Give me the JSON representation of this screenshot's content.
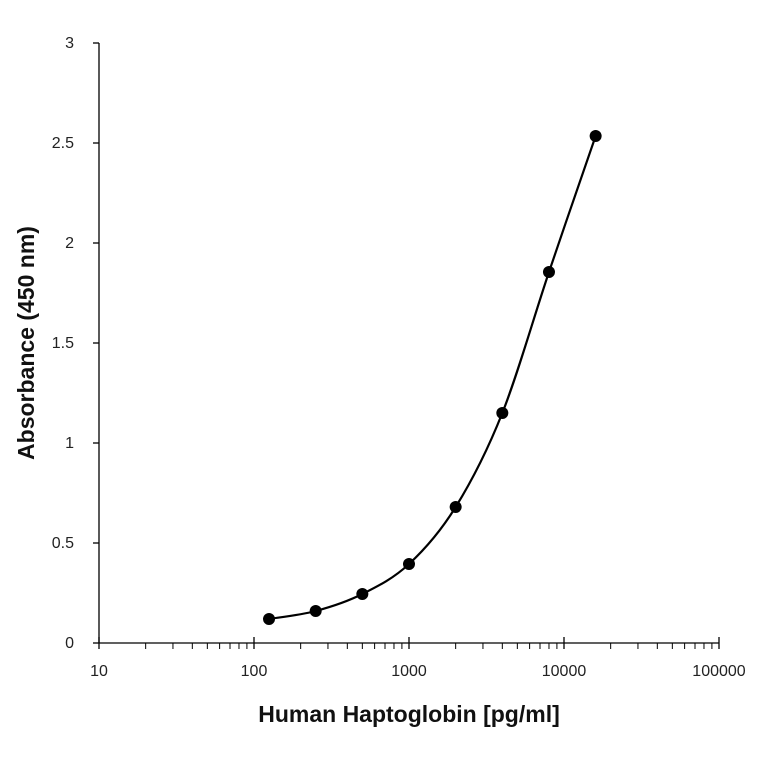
{
  "chart_data": {
    "type": "scatter",
    "title": "",
    "xlabel": "Human Haptoglobin [pg/ml]",
    "ylabel": "Absorbance (450 nm)",
    "x_scale": "log",
    "xlim": [
      10,
      100000
    ],
    "ylim": [
      0,
      3
    ],
    "x_ticks": [
      10,
      100,
      1000,
      10000,
      100000
    ],
    "x_tick_labels": [
      "10",
      "100",
      "1000",
      "10000",
      "100000"
    ],
    "y_ticks": [
      0,
      0.5,
      1,
      1.5,
      2,
      2.5,
      3
    ],
    "y_tick_labels": [
      "0",
      "0.5",
      "1",
      "1.5",
      "2",
      "2.5",
      "3"
    ],
    "grid": false,
    "legend": "none",
    "series": [
      {
        "x": [
          125,
          250,
          500,
          1000,
          2000,
          4000,
          8000,
          16000
        ],
        "y": [
          0.12,
          0.16,
          0.245,
          0.395,
          0.68,
          1.15,
          1.855,
          2.535
        ],
        "color": "#000000",
        "marker": "circle",
        "line": "smooth"
      }
    ]
  }
}
